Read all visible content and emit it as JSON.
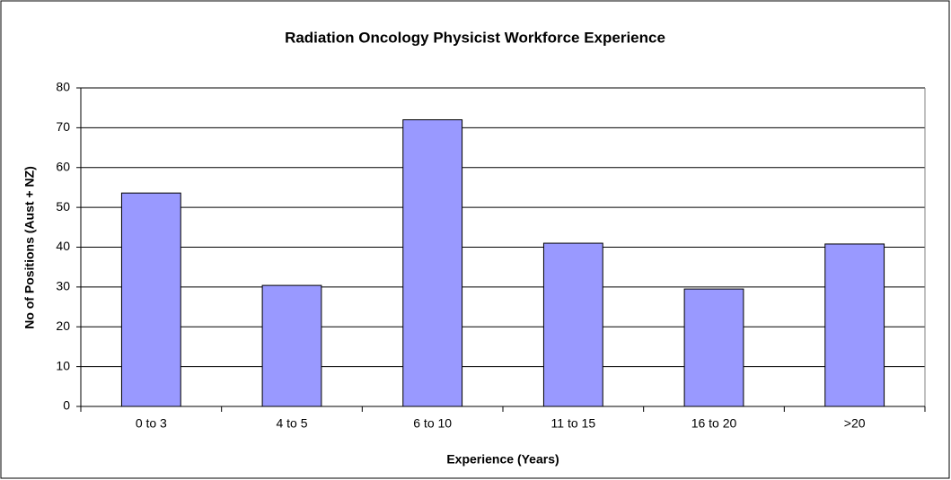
{
  "chart_data": {
    "type": "bar",
    "title": "Radiation Oncology Physicist Workforce Experience",
    "x_label": "Experience (Years)",
    "y_label": "No of Positions (Aust + NZ)",
    "categories": [
      "0 to 3",
      "4 to 5",
      "6 to 10",
      "11 to 15",
      "16 to 20",
      ">20"
    ],
    "values": [
      53.6,
      30.4,
      72,
      41,
      29.5,
      40.8
    ],
    "color": "#9999ff",
    "ylim": [
      0,
      80
    ],
    "yticks": [
      0,
      10,
      20,
      30,
      40,
      50,
      60,
      70,
      80
    ],
    "grid": true
  }
}
